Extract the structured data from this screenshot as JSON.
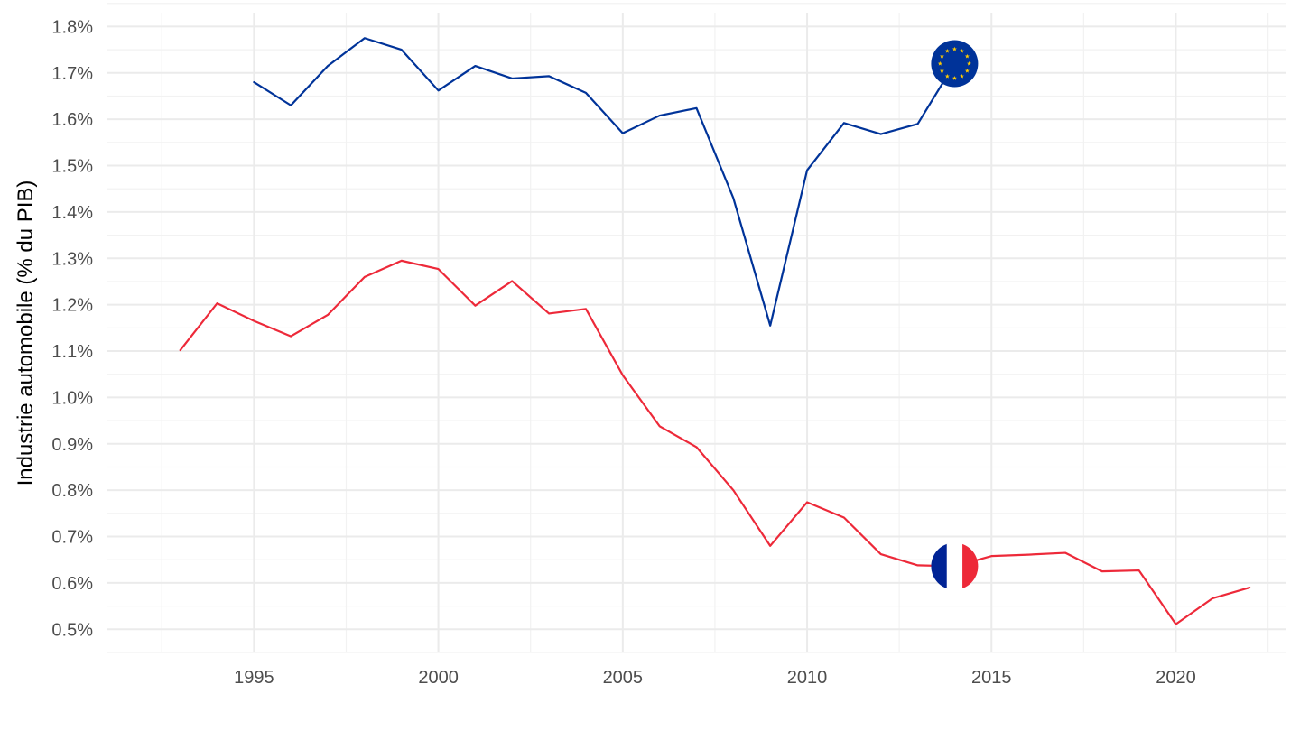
{
  "chart_data": {
    "type": "line",
    "title": "",
    "xlabel": "",
    "ylabel": "Industrie automobile (% du PIB)",
    "xlim": [
      1991,
      2023
    ],
    "ylim": [
      0.45,
      1.83
    ],
    "x_ticks": [
      1995,
      2000,
      2005,
      2010,
      2015,
      2020
    ],
    "x_tick_labels": [
      "1995",
      "2000",
      "2005",
      "2010",
      "2015",
      "2020"
    ],
    "y_ticks": [
      0.5,
      0.6,
      0.7,
      0.8,
      0.9,
      1.0,
      1.1,
      1.2,
      1.3,
      1.4,
      1.5,
      1.6,
      1.7,
      1.8
    ],
    "y_tick_labels": [
      "0.5%",
      "0.6%",
      "0.7%",
      "0.8%",
      "0.9%",
      "1.0%",
      "1.1%",
      "1.2%",
      "1.3%",
      "1.4%",
      "1.5%",
      "1.6%",
      "1.7%",
      "1.8%"
    ],
    "grid": true,
    "legend": "none",
    "series": [
      {
        "color": "#003399",
        "marker_icon": "eu-flag-icon",
        "marker_x": 2014,
        "marker_y": 1.72,
        "x": [
          1995,
          1996,
          1997,
          1998,
          1999,
          2000,
          2001,
          2002,
          2003,
          2004,
          2005,
          2006,
          2007,
          2008,
          2009,
          2010,
          2011,
          2012,
          2013,
          2014
        ],
        "values": [
          1.68,
          1.63,
          1.715,
          1.775,
          1.75,
          1.662,
          1.715,
          1.688,
          1.693,
          1.657,
          1.57,
          1.608,
          1.624,
          1.43,
          1.155,
          1.49,
          1.592,
          1.568,
          1.59,
          1.72
        ]
      },
      {
        "color": "#ED2939",
        "marker_icon": "france-flag-icon",
        "marker_x": 2014,
        "marker_y": 0.636,
        "x": [
          1993,
          1994,
          1995,
          1996,
          1997,
          1998,
          1999,
          2000,
          2001,
          2002,
          2003,
          2004,
          2005,
          2006,
          2007,
          2008,
          2009,
          2010,
          2011,
          2012,
          2013,
          2014,
          2015,
          2016,
          2017,
          2018,
          2019,
          2020,
          2021,
          2022
        ],
        "values": [
          1.102,
          1.203,
          1.165,
          1.132,
          1.178,
          1.26,
          1.295,
          1.277,
          1.198,
          1.251,
          1.181,
          1.191,
          1.048,
          0.938,
          0.893,
          0.8,
          0.68,
          0.774,
          0.741,
          0.662,
          0.638,
          0.636,
          0.658,
          0.661,
          0.665,
          0.625,
          0.627,
          0.511,
          0.567,
          0.59
        ]
      }
    ]
  },
  "colors": {
    "eu_blue": "#003399",
    "eu_star": "#FFCC00",
    "fr_blue": "#002395",
    "fr_white": "#FFFFFF",
    "fr_red": "#ED2939"
  }
}
